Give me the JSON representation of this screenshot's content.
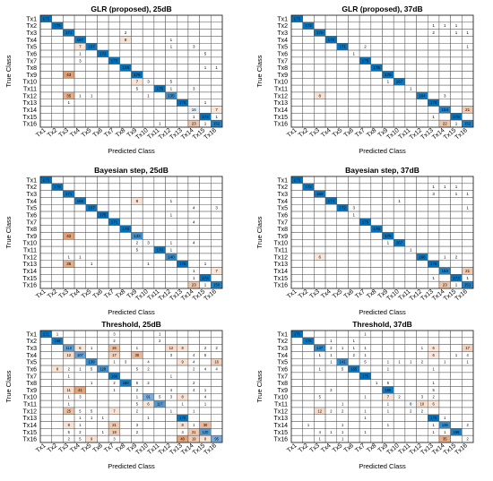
{
  "chart_data": [
    {
      "type": "heatmap",
      "title": "GLR (proposed), 25dB",
      "xlabel": "Predicted Class",
      "ylabel": "True Class",
      "classes": [
        "Tx1",
        "Tx2",
        "Tx3",
        "Tx4",
        "Tx5",
        "Tx6",
        "Tx7",
        "Tx8",
        "Tx9",
        "Tx10",
        "Tx11",
        "Tx12",
        "Tx13",
        "Tx14",
        "Tx15",
        "Tx16"
      ],
      "diagonal": [
        175,
        175,
        171,
        167,
        167,
        172,
        172,
        174,
        175,
        175,
        175,
        135,
        175,
        140,
        174,
        152
      ],
      "off_diagonal": [
        [
          2,
          7,
          2
        ],
        [
          3,
          7,
          8
        ],
        [
          3,
          11,
          1
        ],
        [
          4,
          3,
          7
        ],
        [
          4,
          11,
          1
        ],
        [
          4,
          13,
          3
        ],
        [
          5,
          3,
          1
        ],
        [
          5,
          14,
          5
        ],
        [
          6,
          3,
          3
        ],
        [
          7,
          14,
          1
        ],
        [
          7,
          15,
          1
        ],
        [
          8,
          2,
          43
        ],
        [
          9,
          8,
          7
        ],
        [
          9,
          9,
          3
        ],
        [
          9,
          11,
          5
        ],
        [
          10,
          8,
          5
        ],
        [
          10,
          11,
          1
        ],
        [
          10,
          13,
          3
        ],
        [
          11,
          2,
          35
        ],
        [
          11,
          3,
          1
        ],
        [
          11,
          4,
          1
        ],
        [
          11,
          9,
          1
        ],
        [
          12,
          2,
          1
        ],
        [
          12,
          14,
          1
        ],
        [
          13,
          13,
          16
        ],
        [
          13,
          15,
          7
        ],
        [
          14,
          13,
          1
        ],
        [
          14,
          15,
          1
        ],
        [
          15,
          10,
          1
        ],
        [
          15,
          13,
          23
        ],
        [
          15,
          14,
          1
        ]
      ]
    },
    {
      "type": "heatmap",
      "title": "GLR (proposed), 37dB",
      "xlabel": "Predicted Class",
      "ylabel": "True Class",
      "classes": [
        "Tx1",
        "Tx2",
        "Tx3",
        "Tx4",
        "Tx5",
        "Tx6",
        "Tx7",
        "Tx8",
        "Tx9",
        "Tx10",
        "Tx11",
        "Tx12",
        "Tx13",
        "Tx14",
        "Tx15",
        "Tx16"
      ],
      "diagonal": [
        175,
        172,
        170,
        175,
        171,
        174,
        175,
        175,
        175,
        167,
        174,
        164,
        175,
        154,
        175,
        152
      ],
      "off_diagonal": [
        [
          1,
          12,
          1
        ],
        [
          1,
          13,
          1
        ],
        [
          1,
          14,
          1
        ],
        [
          2,
          12,
          2
        ],
        [
          2,
          14,
          1
        ],
        [
          2,
          15,
          1
        ],
        [
          4,
          6,
          2
        ],
        [
          4,
          15,
          1
        ],
        [
          5,
          5,
          1
        ],
        [
          9,
          8,
          1
        ],
        [
          10,
          10,
          1
        ],
        [
          11,
          2,
          8
        ],
        [
          11,
          13,
          3
        ],
        [
          13,
          15,
          21
        ],
        [
          14,
          12,
          1
        ],
        [
          15,
          13,
          22
        ],
        [
          15,
          14,
          1
        ]
      ]
    },
    {
      "type": "heatmap",
      "title": "Bayesian step, 25dB",
      "xlabel": "Predicted Class",
      "ylabel": "True Class",
      "classes": [
        "Tx1",
        "Tx2",
        "Tx3",
        "Tx4",
        "Tx5",
        "Tx6",
        "Tx7",
        "Tx8",
        "Tx9",
        "Tx10",
        "Tx11",
        "Tx12",
        "Tx13",
        "Tx14",
        "Tx15",
        "Tx16"
      ],
      "diagonal": [
        175,
        175,
        171,
        166,
        167,
        175,
        171,
        174,
        133,
        175,
        170,
        140,
        175,
        168,
        174,
        150
      ],
      "off_diagonal": [
        [
          3,
          8,
          8
        ],
        [
          3,
          11,
          1
        ],
        [
          4,
          13,
          4
        ],
        [
          4,
          15,
          3
        ],
        [
          5,
          11,
          1
        ],
        [
          6,
          13,
          4
        ],
        [
          8,
          2,
          42
        ],
        [
          9,
          8,
          2
        ],
        [
          9,
          9,
          3
        ],
        [
          9,
          11,
          1
        ],
        [
          9,
          13,
          4
        ],
        [
          10,
          8,
          5
        ],
        [
          10,
          11,
          1
        ],
        [
          11,
          2,
          1
        ],
        [
          11,
          3,
          1
        ],
        [
          12,
          2,
          35
        ],
        [
          12,
          4,
          1
        ],
        [
          12,
          9,
          1
        ],
        [
          12,
          14,
          1
        ],
        [
          13,
          13,
          1
        ],
        [
          13,
          15,
          7
        ],
        [
          14,
          13,
          1
        ],
        [
          15,
          13,
          23
        ],
        [
          15,
          14,
          1
        ]
      ]
    },
    {
      "type": "heatmap",
      "title": "Bayesian step, 37dB",
      "xlabel": "Predicted Class",
      "ylabel": "True Class",
      "classes": [
        "Tx1",
        "Tx2",
        "Tx3",
        "Tx4",
        "Tx5",
        "Tx6",
        "Tx7",
        "Tx8",
        "Tx9",
        "Tx10",
        "Tx11",
        "Tx12",
        "Tx13",
        "Tx14",
        "Tx15",
        "Tx16"
      ],
      "diagonal": [
        175,
        172,
        169,
        174,
        172,
        174,
        175,
        175,
        175,
        167,
        175,
        166,
        175,
        154,
        173,
        151
      ],
      "off_diagonal": [
        [
          1,
          12,
          1
        ],
        [
          1,
          13,
          1
        ],
        [
          1,
          14,
          1
        ],
        [
          2,
          12,
          3
        ],
        [
          2,
          14,
          1
        ],
        [
          2,
          15,
          1
        ],
        [
          3,
          9,
          1
        ],
        [
          4,
          5,
          3
        ],
        [
          4,
          15,
          1
        ],
        [
          5,
          5,
          1
        ],
        [
          9,
          8,
          1
        ],
        [
          10,
          10,
          1
        ],
        [
          11,
          2,
          6
        ],
        [
          11,
          13,
          1
        ],
        [
          11,
          14,
          2
        ],
        [
          13,
          15,
          21
        ],
        [
          14,
          12,
          1
        ],
        [
          14,
          15,
          1
        ],
        [
          15,
          13,
          23
        ],
        [
          15,
          14,
          1
        ]
      ]
    },
    {
      "type": "heatmap",
      "title": "Threshold, 25dB",
      "xlabel": "Predicted Class",
      "ylabel": "True Class",
      "classes": [
        "Tx1",
        "Tx2",
        "Tx3",
        "Tx4",
        "Tx5",
        "Tx6",
        "Tx7",
        "Tx8",
        "Tx9",
        "Tx10",
        "Tx11",
        "Tx12",
        "Tx13",
        "Tx14",
        "Tx15",
        "Tx16"
      ],
      "diagonal": [
        171,
        168,
        112,
        107,
        139,
        128,
        166,
        160,
        107,
        91,
        117,
        102,
        170,
        100,
        120,
        95
      ],
      "off_diagonal": [
        [
          0,
          1,
          1
        ],
        [
          0,
          6,
          3
        ],
        [
          0,
          10,
          1
        ],
        [
          1,
          6,
          2
        ],
        [
          1,
          10,
          2
        ],
        [
          2,
          3,
          6
        ],
        [
          2,
          4,
          1
        ],
        [
          2,
          6,
          26
        ],
        [
          2,
          8,
          1
        ],
        [
          2,
          11,
          12
        ],
        [
          2,
          12,
          8
        ],
        [
          2,
          14,
          2
        ],
        [
          2,
          15,
          2
        ],
        [
          3,
          2,
          12
        ],
        [
          3,
          6,
          17
        ],
        [
          3,
          8,
          30
        ],
        [
          3,
          11,
          3
        ],
        [
          3,
          13,
          4
        ],
        [
          3,
          14,
          5
        ],
        [
          4,
          6,
          1
        ],
        [
          4,
          7,
          3
        ],
        [
          4,
          9,
          4
        ],
        [
          4,
          12,
          9
        ],
        [
          4,
          13,
          4
        ],
        [
          4,
          15,
          16
        ],
        [
          5,
          1,
          8
        ],
        [
          5,
          2,
          2
        ],
        [
          5,
          3,
          1
        ],
        [
          5,
          4,
          5
        ],
        [
          5,
          8,
          5
        ],
        [
          5,
          9,
          2
        ],
        [
          5,
          13,
          2
        ],
        [
          5,
          14,
          4
        ],
        [
          5,
          15,
          4
        ],
        [
          6,
          2,
          1
        ],
        [
          6,
          11,
          1
        ],
        [
          7,
          4,
          1
        ],
        [
          7,
          6,
          2
        ],
        [
          7,
          8,
          5
        ],
        [
          7,
          9,
          2
        ],
        [
          7,
          13,
          2
        ],
        [
          8,
          2,
          11
        ],
        [
          8,
          3,
          41
        ],
        [
          8,
          6,
          1
        ],
        [
          8,
          8,
          2
        ],
        [
          8,
          11,
          4
        ],
        [
          8,
          13,
          4
        ],
        [
          8,
          14,
          1
        ],
        [
          9,
          2,
          1
        ],
        [
          9,
          3,
          3
        ],
        [
          9,
          8,
          1
        ],
        [
          9,
          10,
          5
        ],
        [
          9,
          11,
          3
        ],
        [
          9,
          12,
          8
        ],
        [
          9,
          14,
          4
        ],
        [
          10,
          2,
          1
        ],
        [
          10,
          8,
          5
        ],
        [
          10,
          9,
          6
        ],
        [
          10,
          12,
          1
        ],
        [
          10,
          14,
          1
        ],
        [
          11,
          2,
          25
        ],
        [
          11,
          3,
          5
        ],
        [
          11,
          4,
          5
        ],
        [
          11,
          6,
          7
        ],
        [
          11,
          8,
          2
        ],
        [
          11,
          11,
          1
        ],
        [
          11,
          13,
          1
        ],
        [
          12,
          3,
          1
        ],
        [
          12,
          4,
          1
        ],
        [
          12,
          5,
          1
        ],
        [
          12,
          9,
          1
        ],
        [
          13,
          2,
          8
        ],
        [
          13,
          3,
          1
        ],
        [
          13,
          6,
          21
        ],
        [
          13,
          8,
          3
        ],
        [
          13,
          12,
          8
        ],
        [
          13,
          13,
          1
        ],
        [
          13,
          14,
          30
        ],
        [
          14,
          2,
          5
        ],
        [
          14,
          3,
          2
        ],
        [
          14,
          5,
          1
        ],
        [
          14,
          6,
          19
        ],
        [
          14,
          8,
          2
        ],
        [
          14,
          12,
          4
        ],
        [
          14,
          13,
          21
        ],
        [
          15,
          2,
          2
        ],
        [
          15,
          3,
          5
        ],
        [
          15,
          4,
          9
        ],
        [
          15,
          6,
          3
        ],
        [
          15,
          12,
          40
        ],
        [
          15,
          13,
          19
        ],
        [
          15,
          14,
          8
        ]
      ]
    },
    {
      "type": "heatmap",
      "title": "Threshold, 37dB",
      "xlabel": "Predicted Class",
      "ylabel": "True Class",
      "classes": [
        "Tx1",
        "Tx2",
        "Tx3",
        "Tx4",
        "Tx5",
        "Tx6",
        "Tx7",
        "Tx8",
        "Tx9",
        "Tx10",
        "Tx11",
        "Tx12",
        "Tx13",
        "Tx14",
        "Tx15",
        "Tx16"
      ],
      "diagonal": [
        175,
        170,
        147,
        166,
        141,
        165,
        175,
        168,
        168,
        155,
        150,
        153,
        175,
        139,
        158,
        137
      ],
      "off_diagonal": [
        [
          0,
          6,
          1
        ],
        [
          1,
          3,
          1
        ],
        [
          1,
          5,
          1
        ],
        [
          2,
          3,
          2
        ],
        [
          2,
          4,
          1
        ],
        [
          2,
          5,
          1
        ],
        [
          2,
          6,
          1
        ],
        [
          2,
          11,
          1
        ],
        [
          2,
          12,
          6
        ],
        [
          2,
          15,
          17
        ],
        [
          3,
          2,
          1
        ],
        [
          3,
          3,
          1
        ],
        [
          3,
          5,
          2
        ],
        [
          3,
          6,
          1
        ],
        [
          3,
          12,
          6
        ],
        [
          3,
          14,
          1
        ],
        [
          3,
          15,
          4
        ],
        [
          4,
          3,
          1
        ],
        [
          4,
          6,
          5
        ],
        [
          4,
          8,
          1
        ],
        [
          4,
          9,
          1
        ],
        [
          4,
          10,
          1
        ],
        [
          4,
          11,
          2
        ],
        [
          4,
          13,
          1
        ],
        [
          4,
          15,
          1
        ],
        [
          5,
          2,
          1
        ],
        [
          5,
          4,
          5
        ],
        [
          5,
          8,
          1
        ],
        [
          5,
          12,
          1
        ],
        [
          7,
          7,
          1
        ],
        [
          7,
          8,
          5
        ],
        [
          7,
          12,
          1
        ],
        [
          8,
          3,
          2
        ],
        [
          8,
          12,
          5
        ],
        [
          9,
          2,
          5
        ],
        [
          9,
          6,
          1
        ],
        [
          9,
          8,
          7
        ],
        [
          9,
          9,
          2
        ],
        [
          9,
          11,
          3
        ],
        [
          9,
          12,
          2
        ],
        [
          10,
          4,
          1
        ],
        [
          10,
          8,
          1
        ],
        [
          10,
          10,
          8
        ],
        [
          10,
          11,
          10
        ],
        [
          10,
          12,
          6
        ],
        [
          11,
          2,
          12
        ],
        [
          11,
          3,
          2
        ],
        [
          11,
          4,
          2
        ],
        [
          11,
          6,
          1
        ],
        [
          11,
          8,
          1
        ],
        [
          11,
          10,
          2
        ],
        [
          11,
          11,
          2
        ],
        [
          12,
          6,
          1
        ],
        [
          12,
          13,
          1
        ],
        [
          13,
          1,
          1
        ],
        [
          13,
          4,
          1
        ],
        [
          13,
          8,
          1
        ],
        [
          13,
          12,
          1
        ],
        [
          13,
          15,
          2
        ],
        [
          14,
          2,
          4
        ],
        [
          14,
          3,
          1
        ],
        [
          14,
          4,
          1
        ],
        [
          14,
          6,
          1
        ],
        [
          14,
          12,
          1
        ],
        [
          14,
          13,
          1
        ],
        [
          15,
          2,
          1
        ],
        [
          15,
          4,
          1
        ],
        [
          15,
          13,
          35
        ],
        [
          15,
          15,
          2
        ]
      ]
    }
  ]
}
